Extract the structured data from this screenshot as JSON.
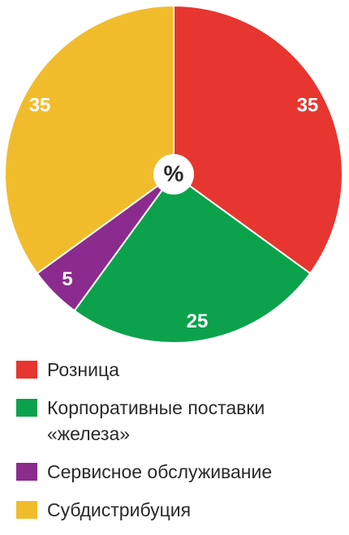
{
  "chart_data": {
    "type": "pie",
    "center_label": "%",
    "categories": [
      "Розница",
      "Корпоративные поставки «железа»",
      "Сервисное обслуживание",
      "Субдистрибуция"
    ],
    "values": [
      35,
      25,
      5,
      35
    ],
    "colors": [
      "#e6362f",
      "#0ba24b",
      "#8c2b8e",
      "#f1bc2c"
    ]
  }
}
